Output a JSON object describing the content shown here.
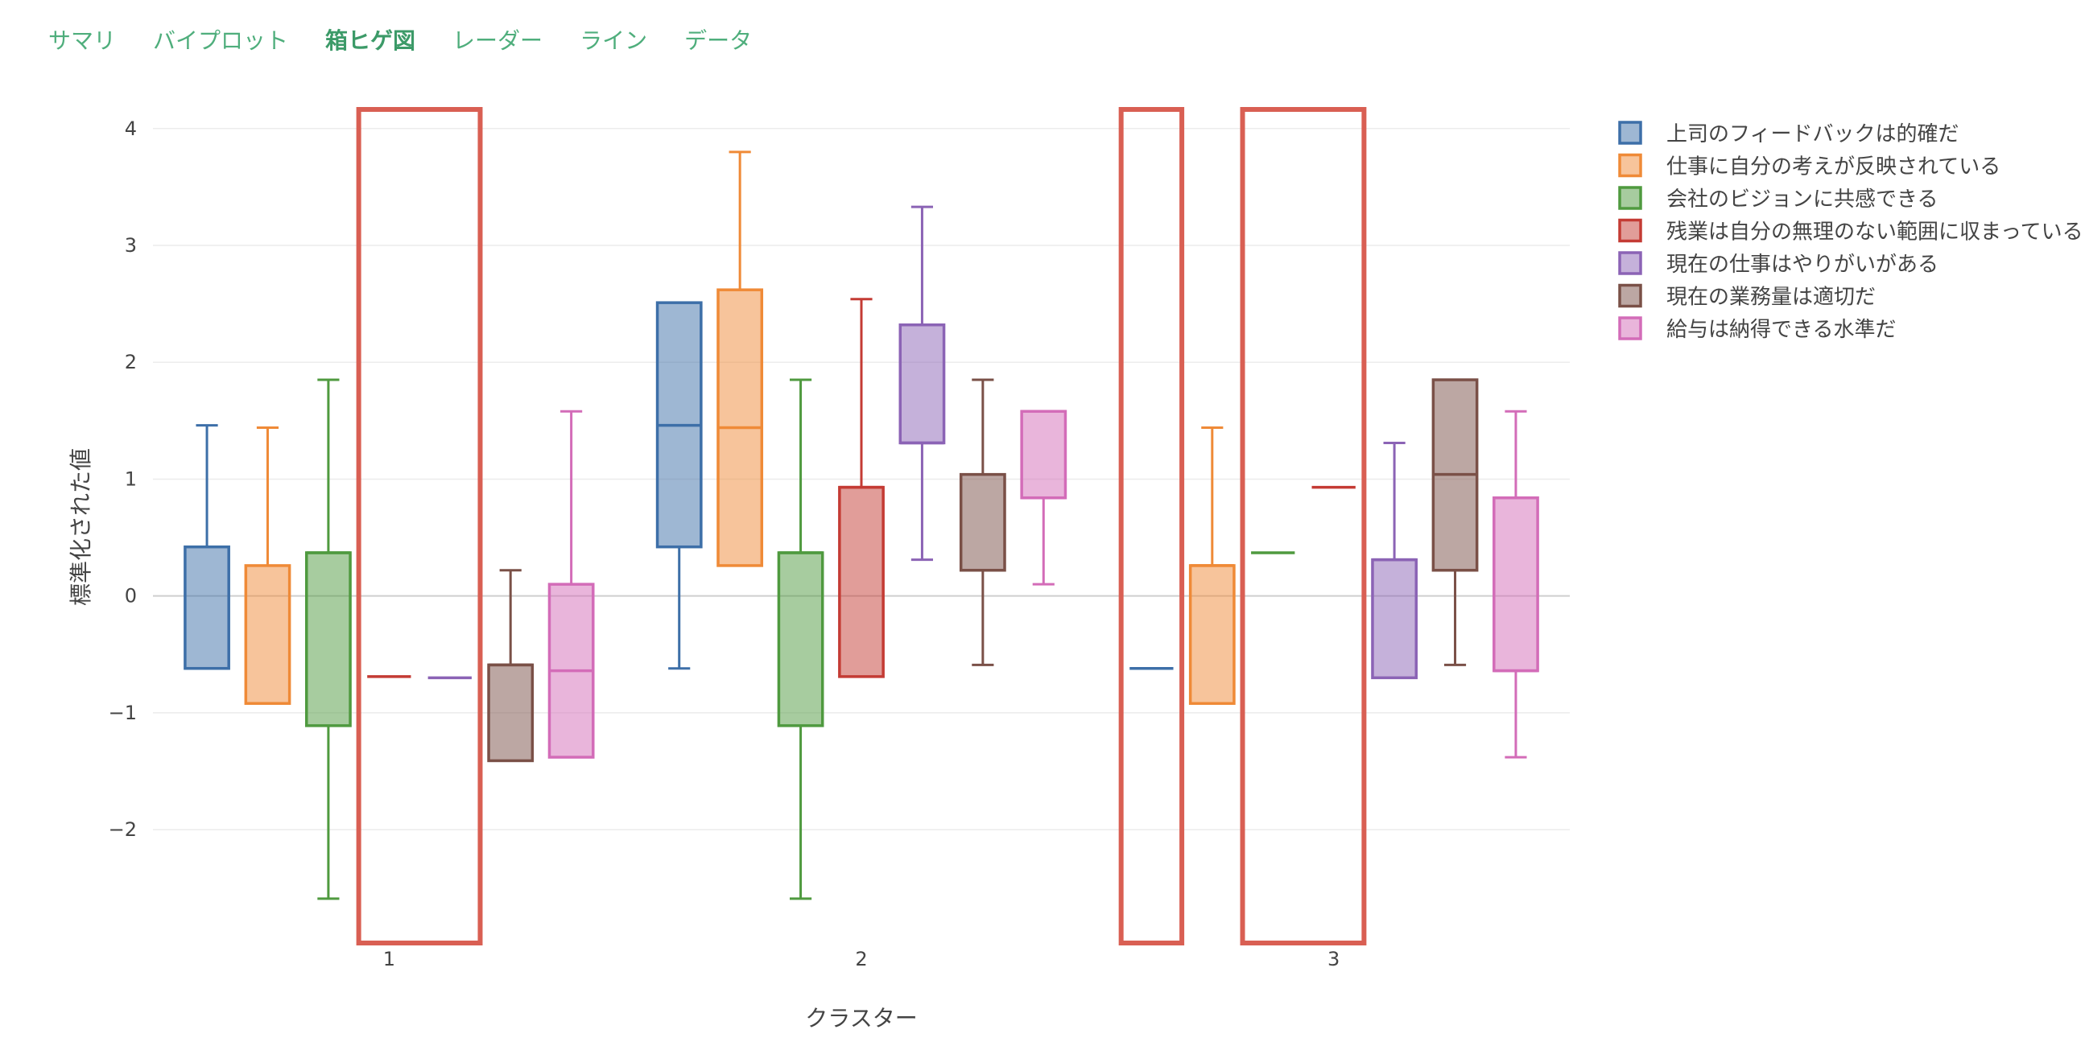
{
  "tabs": [
    {
      "label": "サマリ",
      "active": false
    },
    {
      "label": "バイプロット",
      "active": false
    },
    {
      "label": "箱ヒゲ図",
      "active": true
    },
    {
      "label": "レーダー",
      "active": false
    },
    {
      "label": "ライン",
      "active": false
    },
    {
      "label": "データ",
      "active": false
    }
  ],
  "chart_data": {
    "type": "box",
    "xlabel": "クラスター",
    "ylabel": "標準化された値",
    "categories": [
      "1",
      "2",
      "3"
    ],
    "yticks": [
      4,
      3,
      2,
      1,
      0,
      -1,
      -2
    ],
    "ytick_labels": [
      "4",
      "3",
      "2",
      "1",
      "0",
      "−1",
      "−2"
    ],
    "ylim": [
      -2.97,
      4.15
    ],
    "grid": true,
    "legend_position": "right",
    "series": [
      {
        "name": "上司のフィードバックは的確だ",
        "color": "#3d6fa8",
        "boxes": [
          {
            "min": -0.62,
            "q1": -0.62,
            "median": -0.62,
            "q3": 0.42,
            "max": 1.46
          },
          {
            "min": -0.62,
            "q1": 0.42,
            "median": 1.46,
            "q3": 2.51,
            "max": 2.51
          },
          {
            "min": -0.62,
            "q1": -0.62,
            "median": -0.62,
            "q3": -0.62,
            "max": -0.62
          }
        ]
      },
      {
        "name": "仕事に自分の考えが反映されている",
        "color": "#ef8a37",
        "boxes": [
          {
            "min": -0.92,
            "q1": -0.92,
            "median": -0.92,
            "q3": 0.26,
            "max": 1.44
          },
          {
            "min": 0.26,
            "q1": 0.26,
            "median": 1.44,
            "q3": 2.62,
            "max": 3.8
          },
          {
            "min": -0.92,
            "q1": -0.92,
            "median": 0.26,
            "q3": 0.26,
            "max": 1.44
          }
        ]
      },
      {
        "name": "会社のビジョンに共感できる",
        "color": "#4f9a3f",
        "boxes": [
          {
            "min": -2.59,
            "q1": -1.11,
            "median": 0.37,
            "q3": 0.37,
            "max": 1.85
          },
          {
            "min": -2.59,
            "q1": -1.11,
            "median": 0.37,
            "q3": 0.37,
            "max": 1.85
          },
          {
            "min": 0.37,
            "q1": 0.37,
            "median": 0.37,
            "q3": 0.37,
            "max": 0.37
          }
        ]
      },
      {
        "name": "残業は自分の無理のない範囲に収まっている",
        "color": "#c43b34",
        "boxes": [
          {
            "min": -0.69,
            "q1": -0.69,
            "median": -0.69,
            "q3": -0.69,
            "max": -0.69
          },
          {
            "min": -0.69,
            "q1": -0.69,
            "median": 0.93,
            "q3": 0.93,
            "max": 2.54
          },
          {
            "min": 0.93,
            "q1": 0.93,
            "median": 0.93,
            "q3": 0.93,
            "max": 0.93
          }
        ]
      },
      {
        "name": "現在の仕事はやりがいがある",
        "color": "#8b63b5",
        "boxes": [
          {
            "min": -0.7,
            "q1": -0.7,
            "median": -0.7,
            "q3": -0.7,
            "max": -0.7
          },
          {
            "min": 0.31,
            "q1": 1.31,
            "median": 1.31,
            "q3": 2.32,
            "max": 3.33
          },
          {
            "min": -0.7,
            "q1": -0.7,
            "median": 0.31,
            "q3": 0.31,
            "max": 1.31
          }
        ]
      },
      {
        "name": "現在の業務量は適切だ",
        "color": "#7a5047",
        "boxes": [
          {
            "min": -1.41,
            "q1": -1.41,
            "median": -0.59,
            "q3": -0.59,
            "max": 0.22
          },
          {
            "min": -0.59,
            "q1": 0.22,
            "median": 0.22,
            "q3": 1.04,
            "max": 1.85
          },
          {
            "min": -0.59,
            "q1": 0.22,
            "median": 1.04,
            "q3": 1.85,
            "max": 1.85
          }
        ]
      },
      {
        "name": "給与は納得できる水準だ",
        "color": "#d36cb8",
        "boxes": [
          {
            "min": -1.38,
            "q1": -1.38,
            "median": -0.64,
            "q3": 0.1,
            "max": 1.58
          },
          {
            "min": 0.1,
            "q1": 0.84,
            "median": 0.84,
            "q3": 1.58,
            "max": 1.58
          },
          {
            "min": -1.38,
            "q1": -0.64,
            "median": -0.64,
            "q3": 0.84,
            "max": 1.58
          }
        ]
      }
    ],
    "highlights": [
      {
        "category": "1",
        "from_series": 3,
        "to_series": 4
      },
      {
        "category": "3",
        "from_series": 0,
        "to_series": 0
      },
      {
        "category": "3",
        "from_series": 2,
        "to_series": 3
      }
    ],
    "highlight_color": "#d95f53"
  }
}
